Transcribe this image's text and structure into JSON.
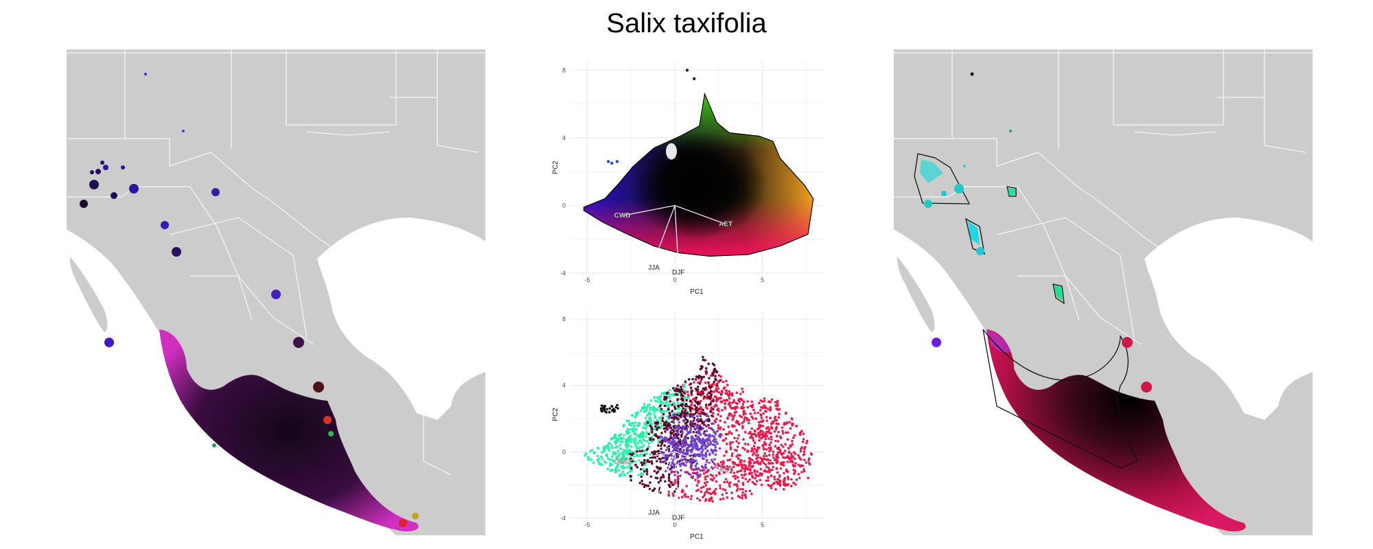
{
  "title": "Salix taxifolia",
  "chart_data": [
    {
      "type": "scatter",
      "panel": "pca-top",
      "title": "",
      "xlabel": "PC1",
      "ylabel": "PC2",
      "xlim": [
        -6,
        8.5
      ],
      "ylim": [
        -4,
        8.5
      ],
      "xticks": [
        -5,
        0,
        5
      ],
      "yticks": [
        -4,
        0,
        4,
        8
      ],
      "grid": true,
      "coloring": "continuous RGB by position",
      "hull": [
        [
          -5.2,
          -0.1
        ],
        [
          -4.0,
          0.4
        ],
        [
          -3.2,
          1.3
        ],
        [
          -2.4,
          2.3
        ],
        [
          -1.2,
          3.4
        ],
        [
          0.3,
          4.1
        ],
        [
          1.4,
          4.7
        ],
        [
          1.7,
          6.6
        ],
        [
          2.4,
          4.9
        ],
        [
          3.1,
          4.3
        ],
        [
          4.8,
          4.1
        ],
        [
          5.6,
          3.8
        ],
        [
          6.0,
          2.8
        ],
        [
          7.4,
          1.2
        ],
        [
          7.9,
          0.4
        ],
        [
          7.6,
          -1.7
        ],
        [
          6.0,
          -2.4
        ],
        [
          4.2,
          -2.9
        ],
        [
          2.0,
          -3.0
        ],
        [
          0.2,
          -2.8
        ],
        [
          -1.2,
          -2.4
        ],
        [
          -2.7,
          -1.7
        ],
        [
          -4.1,
          -1.0
        ],
        [
          -5.2,
          -0.3
        ]
      ],
      "outlier_points": [
        [
          0.7,
          8.0
        ],
        [
          1.1,
          7.5
        ],
        [
          -3.8,
          2.6
        ],
        [
          -3.3,
          2.6
        ],
        [
          -3.6,
          2.5
        ]
      ],
      "arrows": [
        {
          "label": "CWD",
          "x": -3.0,
          "y": -0.6
        },
        {
          "label": "AET",
          "x": 2.9,
          "y": -1.1
        },
        {
          "label": "JJA",
          "x": -1.2,
          "y": -3.3
        },
        {
          "label": "DJF",
          "x": 0.2,
          "y": -3.6
        }
      ]
    },
    {
      "type": "scatter",
      "panel": "pca-bottom",
      "title": "",
      "xlabel": "PC1",
      "ylabel": "PC2",
      "xlim": [
        -6,
        8.5
      ],
      "ylim": [
        -4,
        8.5
      ],
      "xticks": [
        -5,
        0,
        5
      ],
      "yticks": [
        -4,
        0,
        4,
        8
      ],
      "grid": true,
      "coloring": "discrete clusters",
      "clusters": [
        {
          "color": "#ee1848",
          "points": [
            [
              4.0,
              0.0
            ],
            [
              3.0,
              -1.8
            ],
            [
              5.5,
              -0.8
            ],
            [
              6.2,
              1.4
            ],
            [
              2.6,
              2.6
            ],
            [
              1.8,
              3.8
            ],
            [
              6.8,
              -1.2
            ],
            [
              4.5,
              2.0
            ],
            [
              1.0,
              -2.2
            ]
          ]
        },
        {
          "color": "#2bf0a8",
          "points": [
            [
              -2.8,
              0.6
            ],
            [
              -1.2,
              2.8
            ],
            [
              -3.8,
              -0.4
            ],
            [
              -2.0,
              1.8
            ],
            [
              -0.6,
              3.6
            ],
            [
              -3.0,
              -0.2
            ]
          ]
        },
        {
          "color": "#5a0a2a",
          "points": [
            [
              -0.2,
              0.6
            ],
            [
              0.8,
              2.6
            ],
            [
              1.3,
              4.6
            ],
            [
              -1.2,
              -1.2
            ],
            [
              0.4,
              1.6
            ]
          ]
        },
        {
          "color": "#111111",
          "points": [
            [
              -4.0,
              2.6
            ],
            [
              -3.5,
              2.6
            ]
          ]
        },
        {
          "color": "#7040d0",
          "points": [
            [
              1.2,
              0.3
            ],
            [
              0.5,
              -0.3
            ],
            [
              0.9,
              1.0
            ]
          ]
        }
      ],
      "arrows": [
        {
          "label": "CWD",
          "x": -3.0,
          "y": -0.6
        },
        {
          "label": "AET",
          "x": 2.9,
          "y": -1.1
        },
        {
          "label": "JJA",
          "x": -1.2,
          "y": -3.3
        },
        {
          "label": "DJF",
          "x": 0.2,
          "y": -3.6
        }
      ]
    }
  ],
  "colors": {
    "land": "#cccccc",
    "borders": "#ffffff",
    "ocean": "#ffffff",
    "pca_grid": "#ebebeb",
    "pca_fill_left": "#2a10c8",
    "pca_fill_right": "#f0a020",
    "pca_fill_top": "#40e020",
    "pca_fill_bottom": "#ff1060",
    "pca_fill_center": "#000000",
    "range_fill_main": "#c21050",
    "range_fill_dark": "#000000",
    "range_fill_edge": "#e060b0"
  }
}
